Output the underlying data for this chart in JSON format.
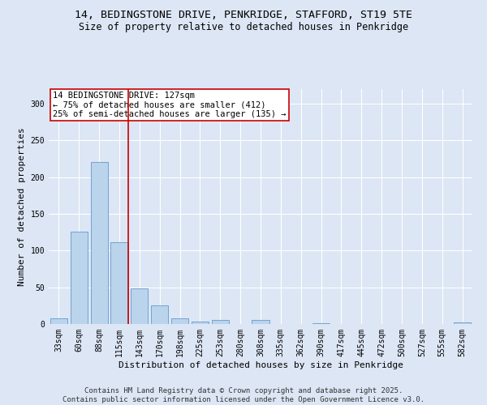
{
  "title_line1": "14, BEDINGSTONE DRIVE, PENKRIDGE, STAFFORD, ST19 5TE",
  "title_line2": "Size of property relative to detached houses in Penkridge",
  "xlabel": "Distribution of detached houses by size in Penkridge",
  "ylabel": "Number of detached properties",
  "categories": [
    "33sqm",
    "60sqm",
    "88sqm",
    "115sqm",
    "143sqm",
    "170sqm",
    "198sqm",
    "225sqm",
    "253sqm",
    "280sqm",
    "308sqm",
    "335sqm",
    "362sqm",
    "390sqm",
    "417sqm",
    "445sqm",
    "472sqm",
    "500sqm",
    "527sqm",
    "555sqm",
    "582sqm"
  ],
  "values": [
    8,
    126,
    221,
    111,
    49,
    25,
    8,
    3,
    5,
    0,
    6,
    0,
    0,
    1,
    0,
    0,
    0,
    0,
    0,
    0,
    2
  ],
  "bar_color": "#bad4ec",
  "bar_edge_color": "#6699cc",
  "vline_color": "#cc0000",
  "vline_pos": 3.43,
  "annotation_text": "14 BEDINGSTONE DRIVE: 127sqm\n← 75% of detached houses are smaller (412)\n25% of semi-detached houses are larger (135) →",
  "annotation_box_color": "#ffffff",
  "annotation_box_edge": "#cc0000",
  "ylim": [
    0,
    320
  ],
  "yticks": [
    0,
    50,
    100,
    150,
    200,
    250,
    300
  ],
  "background_color": "#dce6f5",
  "plot_bg_color": "#dce6f5",
  "footer_text": "Contains HM Land Registry data © Crown copyright and database right 2025.\nContains public sector information licensed under the Open Government Licence v3.0.",
  "title_fontsize": 9.5,
  "subtitle_fontsize": 8.5,
  "axis_label_fontsize": 8,
  "tick_fontsize": 7,
  "annotation_fontsize": 7.5,
  "footer_fontsize": 6.5
}
